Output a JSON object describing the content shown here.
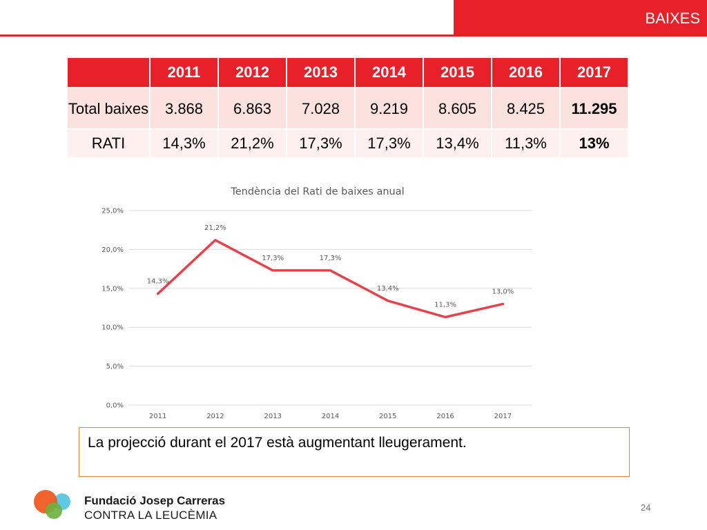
{
  "header": {
    "section_title": "BAIXES"
  },
  "table": {
    "years": [
      "2011",
      "2012",
      "2013",
      "2014",
      "2015",
      "2016",
      "2017"
    ],
    "rows": [
      {
        "label": "Total baixes",
        "values": [
          "3.868",
          "6.863",
          "7.028",
          "9.219",
          "8.605",
          "8.425",
          "11.295"
        ]
      },
      {
        "label": "RATI",
        "values": [
          "14,3%",
          "21,2%",
          "17,3%",
          "17,3%",
          "13,4%",
          "11,3%",
          "13%"
        ]
      }
    ]
  },
  "chart_data": {
    "type": "line",
    "title": "Tendència del Rati de baixes anual",
    "x": [
      "2011",
      "2012",
      "2013",
      "2014",
      "2015",
      "2016",
      "2017"
    ],
    "series": [
      {
        "values": [
          14.3,
          21.2,
          17.3,
          17.3,
          13.4,
          11.3,
          13.0
        ],
        "labels": [
          "14,3%",
          "21,2%",
          "17,3%",
          "17,3%",
          "13,4%",
          "11,3%",
          "13,0%"
        ]
      }
    ],
    "ylim": [
      0,
      25
    ],
    "yticks": [
      0,
      5,
      10,
      15,
      20,
      25
    ],
    "ytick_labels": [
      "0,0%",
      "5,0%",
      "10,0%",
      "15,0%",
      "20,0%",
      "25,0%"
    ],
    "grid": true,
    "colors": {
      "line": "#e8414a",
      "grid": "#d9d9d9",
      "text": "#595959"
    }
  },
  "note": {
    "text": "La projecció durant el  2017 està augmentant lleugerament."
  },
  "footer": {
    "brand_line1": "Fundació Josep Carreras",
    "brand_line2": "CONTRA LA LEUCÈMIA",
    "page_number": "24"
  },
  "colors": {
    "accent": "#e8202a",
    "note_border": "#e8822a"
  }
}
